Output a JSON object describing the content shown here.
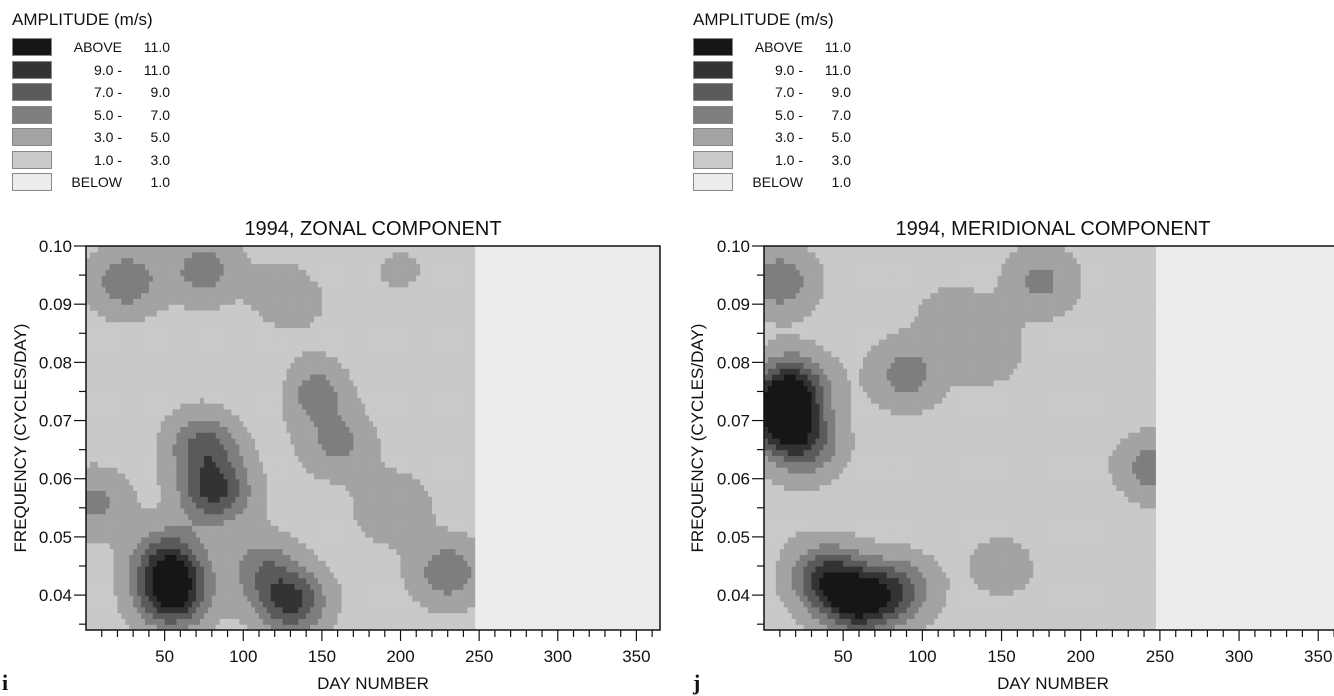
{
  "legend": {
    "title": "AMPLITUDE (m/s)",
    "entries": [
      {
        "a": "ABOVE",
        "b": "11.0",
        "color": "#161616"
      },
      {
        "a": "9.0 -",
        "b": "11.0",
        "color": "#333333"
      },
      {
        "a": "7.0 -",
        "b": "9.0",
        "color": "#5a5a5a"
      },
      {
        "a": "5.0 -",
        "b": "7.0",
        "color": "#7e7e7e"
      },
      {
        "a": "3.0 -",
        "b": "5.0",
        "color": "#a3a3a3"
      },
      {
        "a": "1.0 -",
        "b": "3.0",
        "color": "#c9c9c9"
      },
      {
        "a": "BELOW",
        "b": "1.0",
        "color": "#ececec"
      }
    ]
  },
  "chart_data": [
    {
      "type": "heatmap",
      "panel_letter": "i",
      "title": "1994, ZONAL COMPONENT",
      "xlabel": "DAY NUMBER",
      "ylabel": "FREQUENCY (CYCLES/DAY)",
      "xlim": [
        0,
        365
      ],
      "ylim": [
        0.034,
        0.1
      ],
      "xticks": [
        50,
        100,
        150,
        200,
        250,
        300,
        350
      ],
      "yticks": [
        0.04,
        0.05,
        0.06,
        0.07,
        0.08,
        0.09,
        0.1
      ],
      "ytick_labels": [
        "0.04",
        "0.05",
        "0.06",
        "0.07",
        "0.08",
        "0.09",
        "0.10"
      ],
      "data_end_day": 248,
      "levels": [
        1.0,
        3.0,
        5.0,
        7.0,
        9.0,
        11.0
      ],
      "features": [
        {
          "day": 25,
          "freq": 0.094,
          "amp": 6.5
        },
        {
          "day": 75,
          "freq": 0.096,
          "amp": 6.0
        },
        {
          "day": 5,
          "freq": 0.056,
          "amp": 5.5
        },
        {
          "day": 55,
          "freq": 0.04,
          "amp": 11.5
        },
        {
          "day": 52,
          "freq": 0.046,
          "amp": 9.0
        },
        {
          "day": 82,
          "freq": 0.058,
          "amp": 9.5
        },
        {
          "day": 75,
          "freq": 0.066,
          "amp": 7.5
        },
        {
          "day": 130,
          "freq": 0.039,
          "amp": 9.5
        },
        {
          "day": 112,
          "freq": 0.045,
          "amp": 6.0
        },
        {
          "day": 145,
          "freq": 0.075,
          "amp": 6.0
        },
        {
          "day": 160,
          "freq": 0.066,
          "amp": 5.5
        },
        {
          "day": 195,
          "freq": 0.055,
          "amp": 5.0
        },
        {
          "day": 130,
          "freq": 0.092,
          "amp": 5.0
        },
        {
          "day": 200,
          "freq": 0.095,
          "amp": 3.5
        },
        {
          "day": 150,
          "freq": 0.097,
          "amp": 1.2
        },
        {
          "day": 205,
          "freq": 0.088,
          "amp": 1.2
        },
        {
          "day": 190,
          "freq": 0.081,
          "amp": 1.4
        },
        {
          "day": 115,
          "freq": 0.076,
          "amp": 1.2
        },
        {
          "day": 230,
          "freq": 0.044,
          "amp": 6.5
        }
      ]
    },
    {
      "type": "heatmap",
      "panel_letter": "j",
      "title": "1994, MERIDIONAL COMPONENT",
      "xlabel": "DAY NUMBER",
      "ylabel": "FREQUENCY (CYCLES/DAY)",
      "xlim": [
        0,
        365
      ],
      "ylim": [
        0.034,
        0.1
      ],
      "xticks": [
        50,
        100,
        150,
        200,
        250,
        300,
        350
      ],
      "yticks": [
        0.04,
        0.05,
        0.06,
        0.07,
        0.08,
        0.09,
        0.1
      ],
      "ytick_labels": [
        "0.04",
        "0.05",
        "0.06",
        "0.07",
        "0.08",
        "0.09",
        "0.10"
      ],
      "data_end_day": 248,
      "levels": [
        1.0,
        3.0,
        5.0,
        7.0,
        9.0,
        11.0
      ],
      "features": [
        {
          "day": 10,
          "freq": 0.071,
          "amp": 11.5
        },
        {
          "day": 18,
          "freq": 0.076,
          "amp": 9.5
        },
        {
          "day": 25,
          "freq": 0.066,
          "amp": 8.0
        },
        {
          "day": 60,
          "freq": 0.039,
          "amp": 11.2
        },
        {
          "day": 40,
          "freq": 0.043,
          "amp": 9.5
        },
        {
          "day": 85,
          "freq": 0.041,
          "amp": 7.5
        },
        {
          "day": 15,
          "freq": 0.052,
          "amp": 2.5
        },
        {
          "day": 10,
          "freq": 0.094,
          "amp": 6.5
        },
        {
          "day": 75,
          "freq": 0.09,
          "amp": 2.5
        },
        {
          "day": 90,
          "freq": 0.078,
          "amp": 6.0
        },
        {
          "day": 120,
          "freq": 0.088,
          "amp": 4.0
        },
        {
          "day": 140,
          "freq": 0.082,
          "amp": 4.5
        },
        {
          "day": 175,
          "freq": 0.094,
          "amp": 5.5
        },
        {
          "day": 200,
          "freq": 0.08,
          "amp": 3.0
        },
        {
          "day": 210,
          "freq": 0.077,
          "amp": 1.3
        },
        {
          "day": 200,
          "freq": 0.055,
          "amp": 1.4
        },
        {
          "day": 245,
          "freq": 0.062,
          "amp": 6.0
        },
        {
          "day": 150,
          "freq": 0.045,
          "amp": 4.0
        }
      ]
    }
  ]
}
